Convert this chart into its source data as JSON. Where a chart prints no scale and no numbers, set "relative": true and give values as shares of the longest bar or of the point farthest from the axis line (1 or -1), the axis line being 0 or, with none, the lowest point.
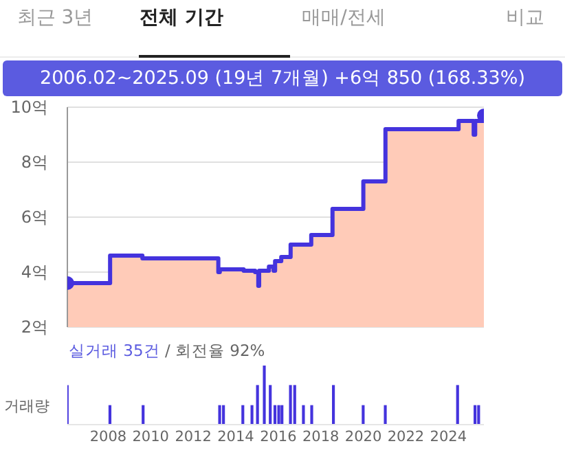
{
  "chart_data": [
    {
      "type": "area",
      "annotations": [
        "최근 3년",
        "전체 기간",
        "매매/전세",
        "비교",
        "2006.02~2025.09 (19년 7개월)  +6억 850 (168.33%)"
      ],
      "x": [
        2006.08,
        2008.09,
        2009.61,
        2013.18,
        2013.25,
        2014.37,
        2014.91,
        2015.06,
        2015.1,
        2015.56,
        2015.78,
        2015.85,
        2016.14,
        2016.58,
        2017.55,
        2018.55,
        2020.0,
        2021.04,
        2024.48,
        2025.19,
        2025.26,
        2025.67
      ],
      "series": [
        {
          "color": "#ffcbb8",
          "values": [
            3.6,
            4.6,
            4.5,
            4.0,
            4.1,
            4.05,
            4.0,
            3.5,
            4.05,
            4.2,
            4.05,
            4.4,
            4.55,
            5.0,
            5.35,
            6.3,
            7.3,
            9.2,
            9.5,
            9.0,
            9.5,
            9.7
          ]
        },
        {
          "type": "step",
          "color": "#4433dd",
          "values": [
            3.6,
            4.6,
            4.5,
            4.0,
            4.1,
            4.05,
            4.0,
            3.5,
            4.05,
            4.2,
            4.05,
            4.4,
            4.55,
            5.0,
            5.35,
            6.3,
            7.3,
            9.2,
            9.5,
            9.0,
            9.5,
            9.7
          ]
        },
        {
          "type": "scatter",
          "color": "#4433dd",
          "marker": "circle",
          "x": [
            2006.08,
            2025.67
          ],
          "values": [
            3.6,
            9.7
          ]
        }
      ],
      "xlim": [
        2006.08,
        2025.67
      ],
      "ylim": [
        2,
        10
      ],
      "yticks": [
        {
          "value": 2,
          "label": "2억"
        },
        {
          "value": 4,
          "label": "4억"
        },
        {
          "value": 6,
          "label": "6억"
        },
        {
          "value": 8,
          "label": "8억"
        },
        {
          "value": 10,
          "label": "10억"
        }
      ],
      "tick_labels": "y",
      "grid": "y",
      "legend": false
    },
    {
      "type": "bar",
      "relative": true,
      "ylabel": "거래량",
      "annotations": [
        "실거래 35건",
        "/ 회전율 92%"
      ],
      "x": [
        2006.08,
        2008.09,
        2009.65,
        2013.25,
        2013.43,
        2014.34,
        2014.77,
        2015.03,
        2015.35,
        2015.63,
        2015.85,
        2016.03,
        2016.18,
        2016.58,
        2016.78,
        2017.19,
        2017.58,
        2018.6,
        2020.0,
        2021.04,
        2024.44,
        2025.26,
        2025.43
      ],
      "series": [
        {
          "color": "#4433dd",
          "values": [
            0.67,
            0.33,
            0.33,
            0.33,
            0.33,
            0.33,
            0.33,
            0.67,
            1,
            0.67,
            0.33,
            0.33,
            0.33,
            0.67,
            0.67,
            0.33,
            0.33,
            0.67,
            0.33,
            0.33,
            0.67,
            0.33,
            0.33
          ]
        }
      ],
      "xlim": [
        2006.08,
        2025.67
      ],
      "xticks": [
        2008,
        2010,
        2012,
        2014,
        2016,
        2018,
        2020,
        2022,
        2024
      ],
      "tick_labels": "x",
      "grid": false,
      "legend": false
    }
  ]
}
